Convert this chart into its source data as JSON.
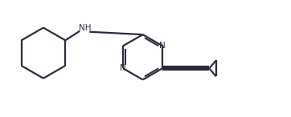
{
  "bg_color": "#ffffff",
  "line_color": "#2b2b3b",
  "line_width": 1.6,
  "font_size": 7.5,
  "nh_label": "NH",
  "n_label": "N",
  "figsize": [
    3.62,
    1.46
  ],
  "dpi": 100,
  "xlim": [
    0,
    10.5
  ],
  "ylim": [
    0,
    4.2
  ]
}
